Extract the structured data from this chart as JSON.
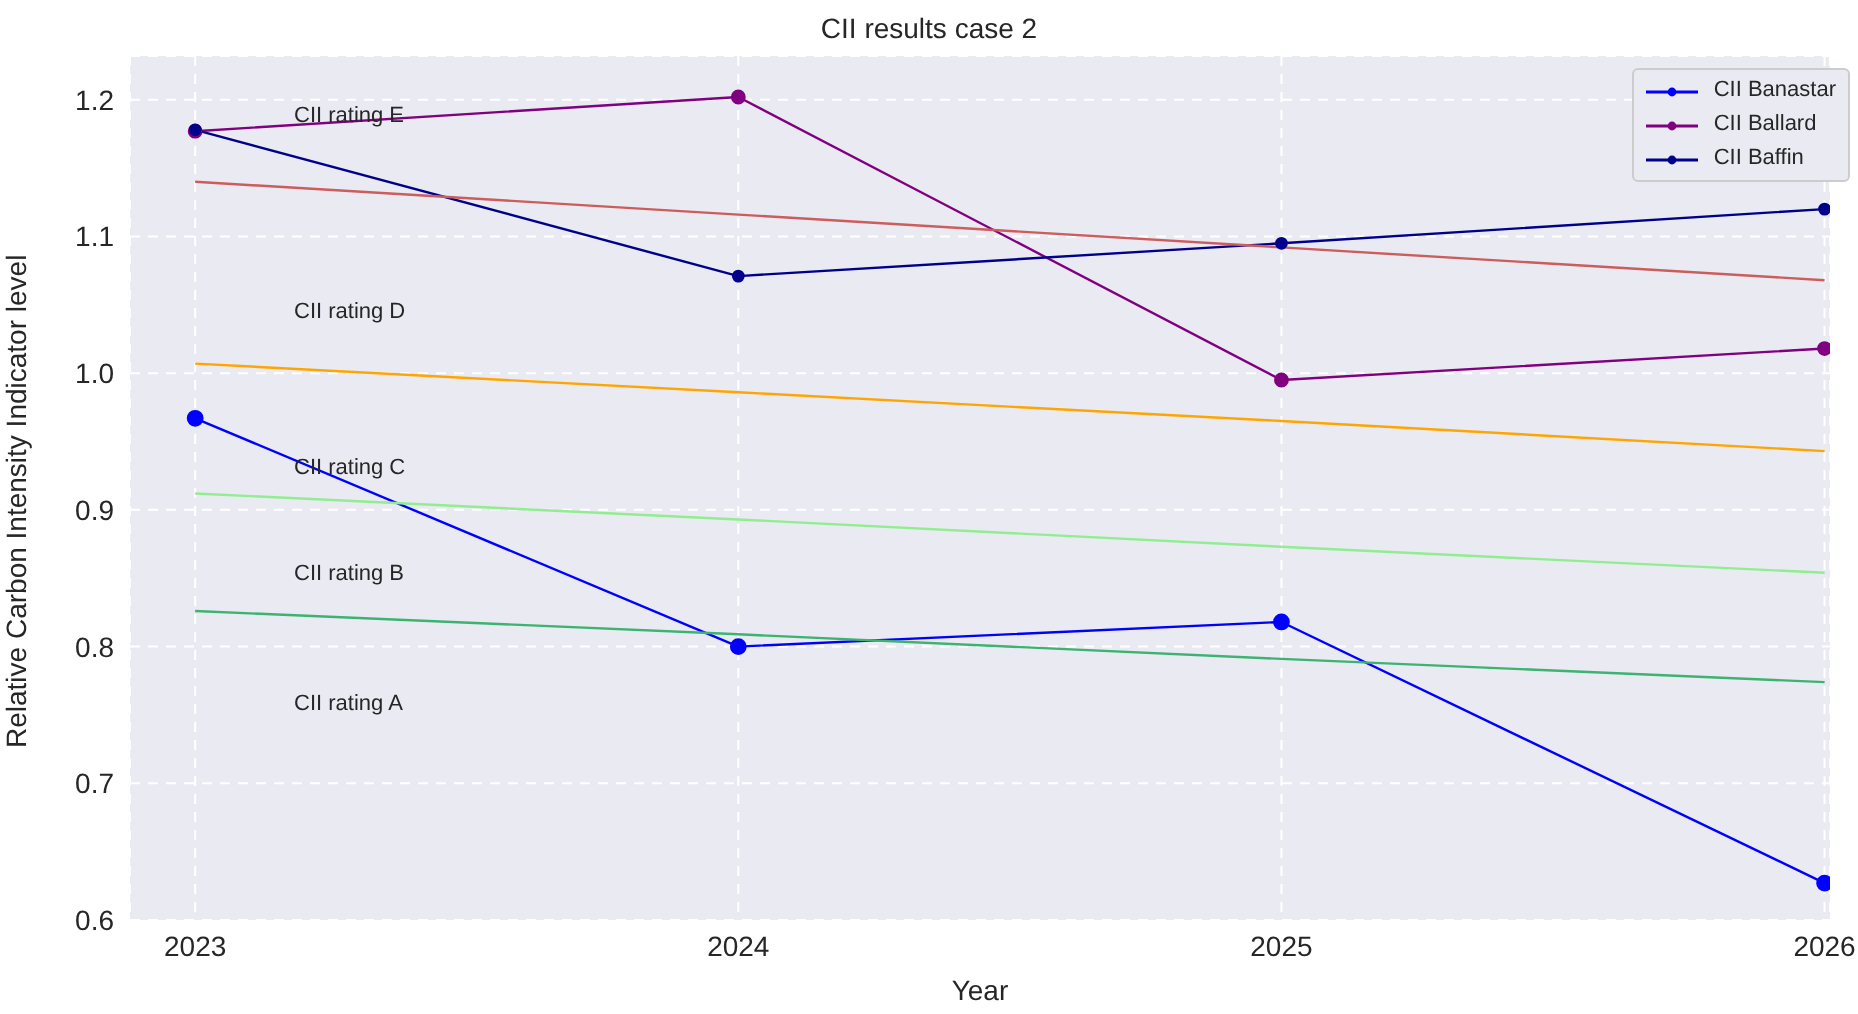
{
  "chart_data": {
    "type": "line",
    "title": "CII results case 2",
    "xlabel": "Year",
    "ylabel": "Relative Carbon Intensity Indicator level",
    "x": [
      2023,
      2024,
      2025,
      2026
    ],
    "series": [
      {
        "name": "CII Banastar",
        "color": "#0000ff",
        "values": [
          0.967,
          0.8,
          0.818,
          0.627
        ]
      },
      {
        "name": "CII Ballard",
        "color": "#800080",
        "values": [
          1.177,
          1.202,
          0.995,
          1.018
        ]
      },
      {
        "name": "CII Baffin",
        "color": "#00008b",
        "values": [
          1.178,
          1.071,
          1.095,
          1.12
        ]
      },
      {
        "color": "#cd5c5c",
        "marker": "none",
        "values": [
          1.14,
          1.116,
          1.092,
          1.068
        ]
      },
      {
        "color": "#ffa500",
        "marker": "none",
        "values": [
          1.007,
          0.986,
          0.965,
          0.943
        ]
      },
      {
        "color": "#90ee90",
        "marker": "none",
        "values": [
          0.912,
          0.893,
          0.873,
          0.854
        ]
      },
      {
        "color": "#3cb371",
        "marker": "none",
        "values": [
          0.826,
          0.809,
          0.791,
          0.774
        ]
      }
    ],
    "annotations": [
      "CII rating E",
      "CII rating D",
      "CII rating C",
      "CII rating B",
      "CII rating A"
    ],
    "xlim": [
      2022.88,
      2026.01
    ],
    "xticks": [
      2023,
      2024,
      2025,
      2026
    ],
    "ylim": [
      0.6,
      1.232
    ],
    "yticks": [
      0.6,
      0.7,
      0.8,
      0.9,
      {
        "value": 1.0,
        "label": "1.0"
      },
      1.1,
      1.2
    ],
    "grid": true,
    "legend": "top right",
    "marker": "circle",
    "line_style": "solid"
  }
}
